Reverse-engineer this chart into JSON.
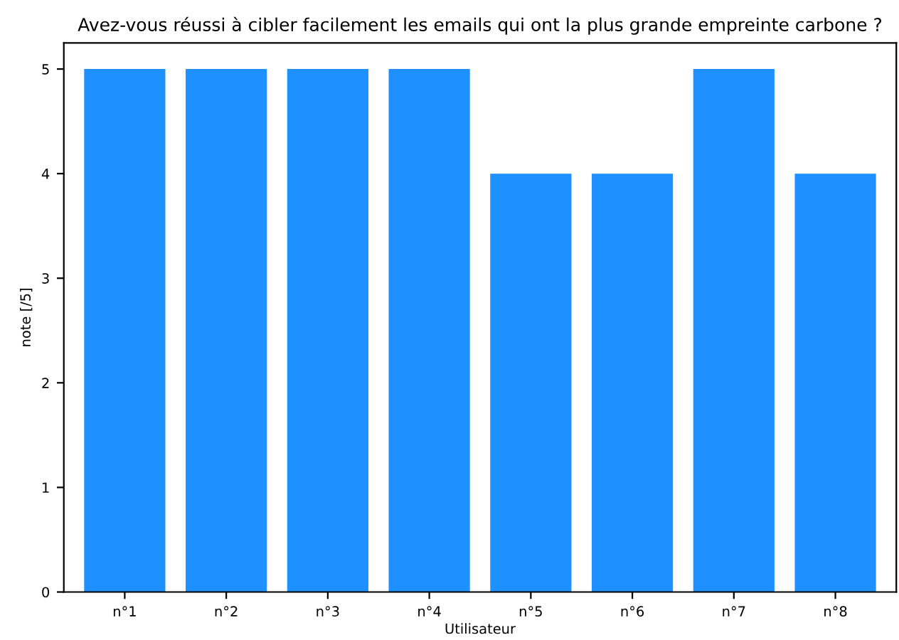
{
  "chart_data": {
    "type": "bar",
    "title": "Avez-vous réussi à cibler facilement les emails qui ont la plus grande empreinte carbone ?",
    "xlabel": "Utilisateur",
    "ylabel": "note [/5]",
    "categories": [
      "n°1",
      "n°2",
      "n°3",
      "n°4",
      "n°5",
      "n°6",
      "n°7",
      "n°8"
    ],
    "values": [
      5,
      5,
      5,
      5,
      4,
      4,
      5,
      4
    ],
    "color": "#1e90ff",
    "ylim": [
      0,
      5.25
    ],
    "yticks": [
      0,
      1,
      2,
      3,
      4,
      5
    ],
    "grid": false
  }
}
